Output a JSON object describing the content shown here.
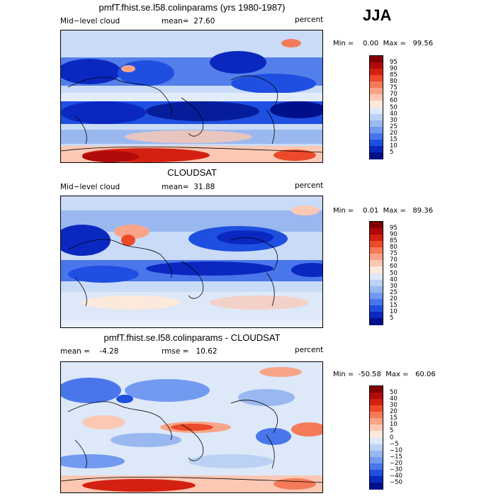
{
  "season": "JJA",
  "panels": [
    {
      "title": "pmfT.fhist.se.l58.colinparams (yrs 1980-1987)",
      "left_label": "Mid−level cloud",
      "stat_label": "mean=",
      "stat_value": "27.60",
      "stat2_label": "",
      "stat2_value": "",
      "units": "percent",
      "min_label": "Min =",
      "min_value": "0.00",
      "max_label": "Max =",
      "max_value": "99.56",
      "colorbar_labels": [
        "95",
        "90",
        "85",
        "80",
        "75",
        "70",
        "60",
        "50",
        "40",
        "30",
        "25",
        "20",
        "15",
        "10",
        "5"
      ],
      "colorbar_colors": [
        "#800000",
        "#b00a0a",
        "#d42010",
        "#ec4a2a",
        "#f57a58",
        "#f9a488",
        "#fcc8b4",
        "#fde8dc",
        "#dde8f8",
        "#bcd2f4",
        "#9ab8f0",
        "#729af0",
        "#4a76ec",
        "#1f4fe0",
        "#0a28c0",
        "#00108a"
      ]
    },
    {
      "title": "CLOUDSAT",
      "left_label": "Mid−level cloud",
      "stat_label": "mean=",
      "stat_value": "31.88",
      "stat2_label": "",
      "stat2_value": "",
      "units": "percent",
      "min_label": "Min =",
      "min_value": "0.01",
      "max_label": "Max =",
      "max_value": "89.36",
      "colorbar_labels": [
        "95",
        "90",
        "85",
        "80",
        "75",
        "70",
        "60",
        "50",
        "40",
        "30",
        "25",
        "20",
        "15",
        "10",
        "5"
      ],
      "colorbar_colors": [
        "#800000",
        "#b00a0a",
        "#d42010",
        "#ec4a2a",
        "#f57a58",
        "#f9a488",
        "#fcc8b4",
        "#fde8dc",
        "#dde8f8",
        "#bcd2f4",
        "#9ab8f0",
        "#729af0",
        "#4a76ec",
        "#1f4fe0",
        "#0a28c0",
        "#00108a"
      ]
    },
    {
      "title": "pmfT.fhist.se.l58.colinparams - CLOUDSAT",
      "left_label": "",
      "stat_label": "mean =",
      "stat_value": "-4.28",
      "stat2_label": "rmse =",
      "stat2_value": "10.62",
      "units": "percent",
      "min_label": "Min =",
      "min_value": "-50.58",
      "max_label": "Max =",
      "max_value": "60.06",
      "colorbar_labels": [
        "50",
        "40",
        "30",
        "20",
        "15",
        "10",
        "5",
        "0",
        "−5",
        "−10",
        "−15",
        "−20",
        "−30",
        "−40",
        "−50"
      ],
      "colorbar_colors": [
        "#800000",
        "#b00a0a",
        "#d42010",
        "#ec4a2a",
        "#f57a58",
        "#f9a488",
        "#fcc8b4",
        "#fde8dc",
        "#dde8f8",
        "#bcd2f4",
        "#9ab8f0",
        "#729af0",
        "#4a76ec",
        "#1f4fe0",
        "#0a28c0",
        "#00108a"
      ]
    }
  ]
}
